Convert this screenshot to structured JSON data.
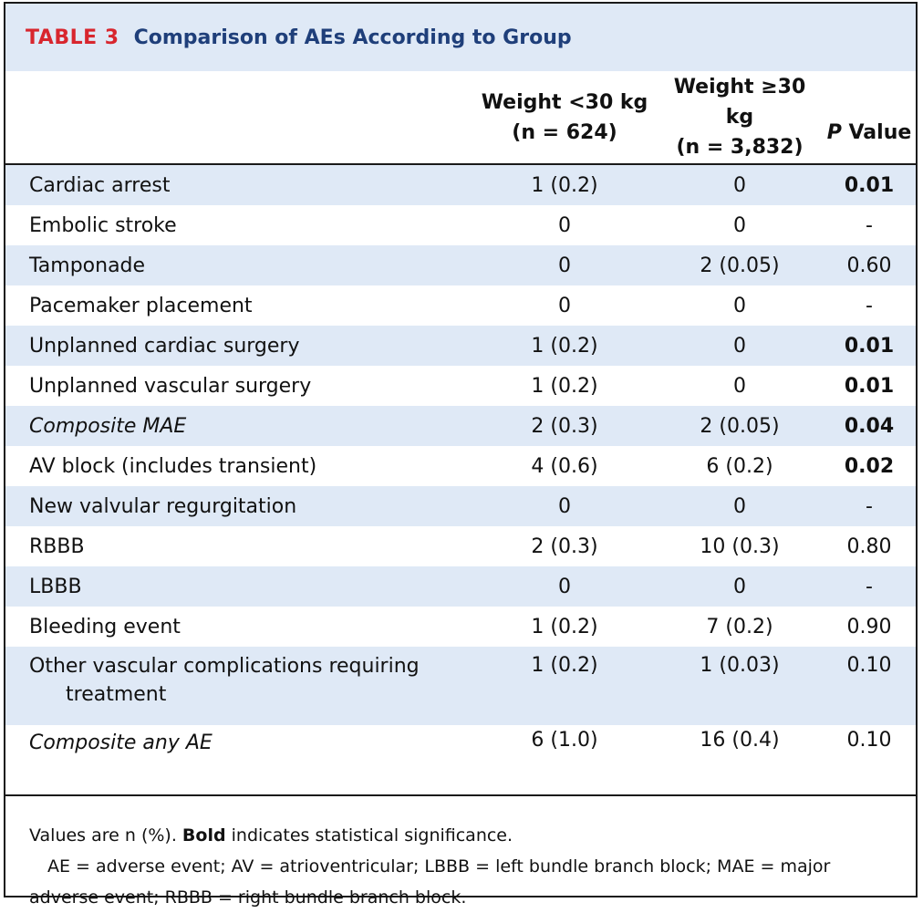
{
  "table": {
    "number": "TABLE 3",
    "title": "Comparison of AEs According to Group",
    "columns": {
      "group_a_line1": "Weight <30 kg",
      "group_a_line2": "(n = 624)",
      "group_b_line1": "Weight ≥30 kg",
      "group_b_line2": "(n = 3,832)",
      "p_italic": "P",
      "p_rest": " Value"
    },
    "rows": [
      {
        "label": "Cardiac arrest",
        "a": "1 (0.2)",
        "b": "0",
        "p": "0.01"
      },
      {
        "label": "Embolic stroke",
        "a": "0",
        "b": "0",
        "p": "-"
      },
      {
        "label": "Tamponade",
        "a": "0",
        "b": "2 (0.05)",
        "p": "0.60"
      },
      {
        "label": "Pacemaker placement",
        "a": "0",
        "b": "0",
        "p": "-"
      },
      {
        "label": "Unplanned cardiac surgery",
        "a": "1 (0.2)",
        "b": "0",
        "p": "0.01"
      },
      {
        "label": "Unplanned vascular surgery",
        "a": "1 (0.2)",
        "b": "0",
        "p": "0.01"
      },
      {
        "label": "Composite MAE",
        "a": "2 (0.3)",
        "b": "2 (0.05)",
        "p": "0.04"
      },
      {
        "label": "AV block (includes transient)",
        "a": "4 (0.6)",
        "b": "6 (0.2)",
        "p": "0.02"
      },
      {
        "label": "New valvular regurgitation",
        "a": "0",
        "b": "0",
        "p": "-"
      },
      {
        "label": "RBBB",
        "a": "2 (0.3)",
        "b": "10 (0.3)",
        "p": "0.80"
      },
      {
        "label": "LBBB",
        "a": "0",
        "b": "0",
        "p": "-"
      },
      {
        "label": "Bleeding event",
        "a": "1 (0.2)",
        "b": "7 (0.2)",
        "p": "0.90"
      },
      {
        "label_line1": "Other vascular complications requiring",
        "label_line2": "treatment",
        "a": "1 (0.2)",
        "b": "1 (0.03)",
        "p": "0.10"
      },
      {
        "label": "Composite any AE",
        "a": "6 (1.0)",
        "b": "16 (0.4)",
        "p": "0.10"
      }
    ],
    "footnotes": {
      "line1_pre": "Values are n (%). ",
      "line1_bold": "Bold",
      "line1_post": " indicates statistical significance.",
      "line2": "AE = adverse event; AV = atrioventricular; LBBB = left bundle branch block; MAE = major adverse event; RBBB = right bundle branch block."
    }
  }
}
